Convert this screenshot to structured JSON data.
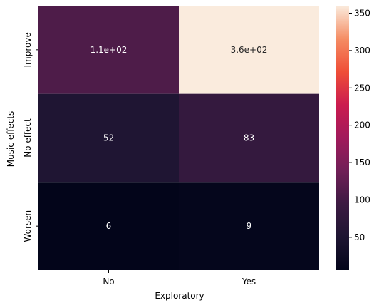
{
  "chart_data": {
    "type": "heatmap",
    "xlabel": "Exploratory",
    "ylabel": "Music effects",
    "x_categories": [
      "No",
      "Yes"
    ],
    "y_categories": [
      "Improve",
      "No effect",
      "Worsen"
    ],
    "values": [
      [
        110,
        360
      ],
      [
        52,
        83
      ],
      [
        6,
        9
      ]
    ],
    "annotations": [
      [
        "1.1e+02",
        "3.6e+02"
      ],
      [
        "52",
        "83"
      ],
      [
        "6",
        "9"
      ]
    ],
    "colorbar": {
      "min": 6,
      "max": 360,
      "ticks": [
        50,
        100,
        150,
        200,
        250,
        300,
        350
      ],
      "tick_labels": [
        "50",
        "100",
        "150",
        "200",
        "250",
        "300",
        "350"
      ],
      "colormap": "rocket"
    }
  }
}
